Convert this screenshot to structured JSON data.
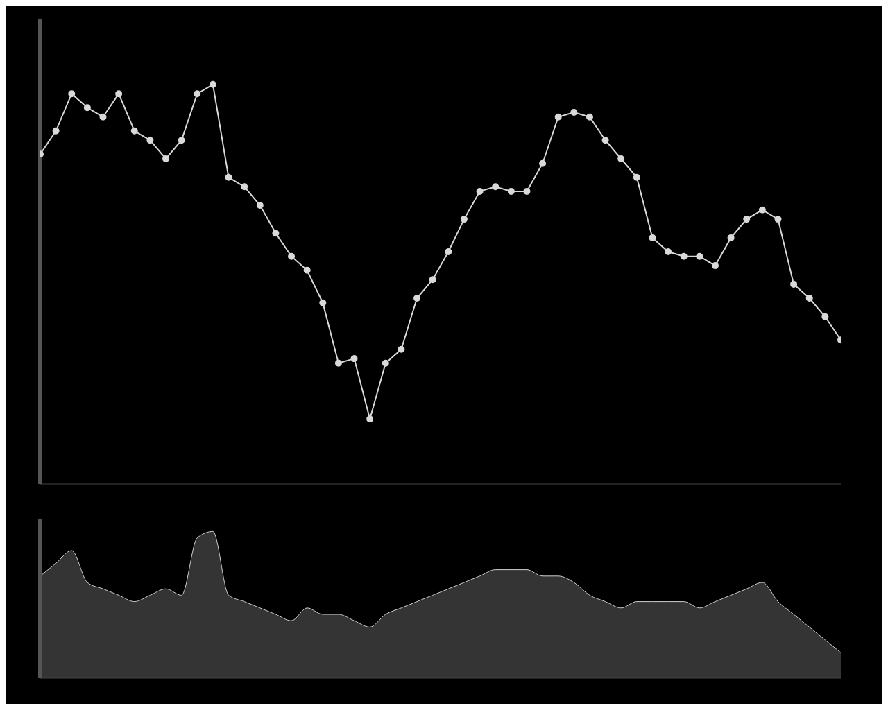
{
  "chart_data": [
    {
      "type": "line",
      "x": [
        0,
        1,
        2,
        3,
        4,
        5,
        6,
        7,
        8,
        9,
        10,
        11,
        12,
        13,
        14,
        15,
        16,
        17,
        18,
        19,
        20,
        21,
        22,
        23,
        24,
        25,
        26,
        27,
        28,
        29,
        30,
        31,
        32,
        33,
        34,
        35,
        36,
        37,
        38,
        39,
        40,
        41,
        42,
        43,
        44,
        45,
        46,
        47,
        48,
        49,
        50,
        51
      ],
      "values": [
        71,
        76,
        84,
        81,
        79,
        84,
        76,
        74,
        70,
        74,
        84,
        86,
        66,
        64,
        60,
        54,
        49,
        46,
        39,
        26,
        27,
        14,
        26,
        29,
        40,
        44,
        50,
        57,
        63,
        64,
        63,
        63,
        69,
        79,
        80,
        79,
        74,
        70,
        66,
        53,
        50,
        49,
        49,
        47,
        53,
        57,
        59,
        57,
        43,
        40,
        36,
        31
      ],
      "color": "#d9d9d9",
      "marker": "circle",
      "xlim": [
        0,
        51
      ],
      "ylim": [
        0,
        100
      ],
      "grid": false,
      "tick_labels": false
    },
    {
      "type": "area",
      "x": [
        0,
        1,
        2,
        3,
        4,
        5,
        6,
        7,
        8,
        9,
        10,
        11,
        12,
        13,
        14,
        15,
        16,
        17,
        18,
        19,
        20,
        21,
        22,
        23,
        24,
        25,
        26,
        27,
        28,
        29,
        30,
        31,
        32,
        33,
        34,
        35,
        36,
        37,
        38,
        39,
        40,
        41,
        42,
        43,
        44,
        45,
        46,
        47,
        48,
        49,
        50,
        51
      ],
      "values": [
        16,
        18,
        20,
        15,
        14,
        13,
        12,
        13,
        14,
        13,
        22,
        23,
        13,
        12,
        11,
        10,
        9,
        11,
        10,
        10,
        9,
        8,
        10,
        11,
        12,
        13,
        14,
        15,
        16,
        17,
        17,
        17,
        16,
        16,
        15,
        13,
        12,
        11,
        12,
        12,
        12,
        12,
        11,
        12,
        13,
        14,
        15,
        12,
        10,
        8,
        6,
        4
      ],
      "color": "#cfcfcf",
      "xlim": [
        0,
        51
      ],
      "ylim": [
        0,
        25
      ],
      "grid": false,
      "tick_labels": false
    }
  ]
}
